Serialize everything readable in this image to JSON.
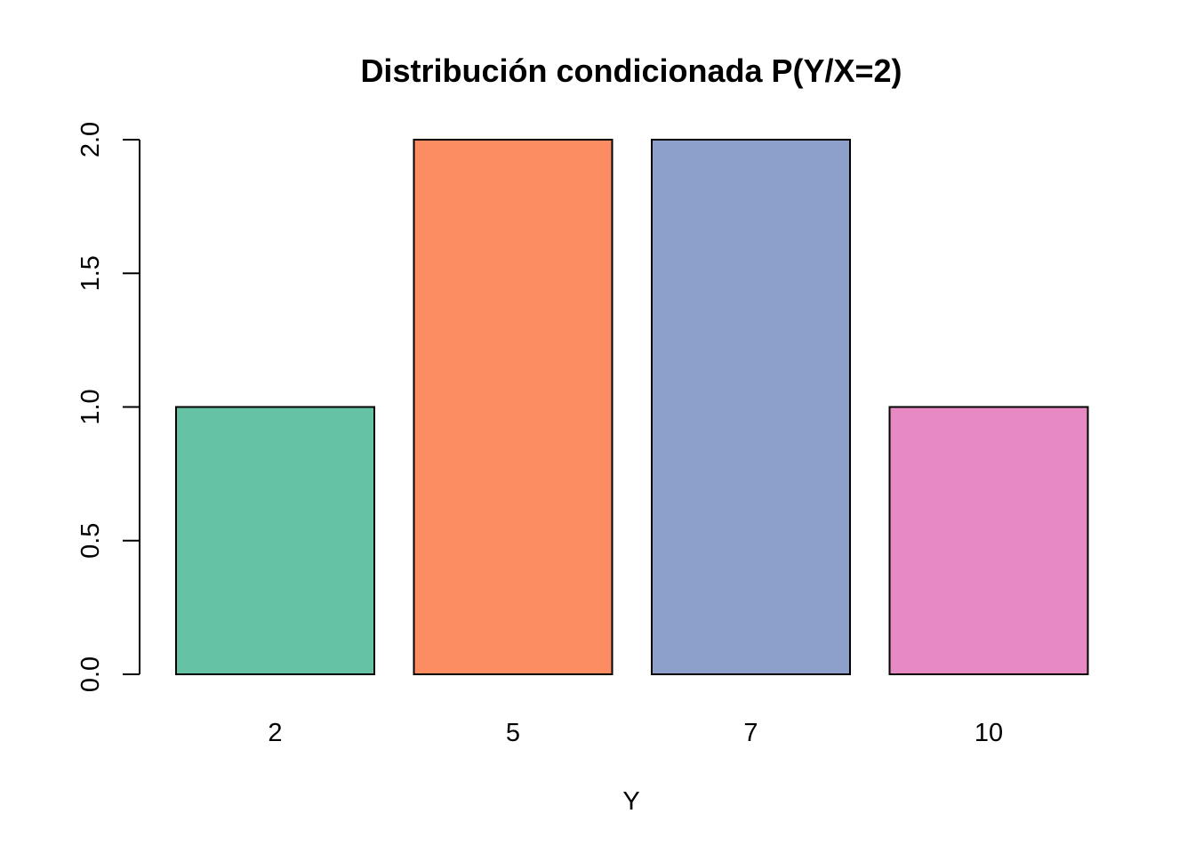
{
  "chart_data": {
    "type": "bar",
    "title": "Distribución condicionada P(Y/X=2)",
    "xlabel": "Y",
    "ylabel": "",
    "categories": [
      "2",
      "5",
      "7",
      "10"
    ],
    "values": [
      1,
      2,
      2,
      1
    ],
    "colors": [
      "#66c2a5",
      "#fc8d62",
      "#8da0cb",
      "#e78ac3"
    ],
    "ylim": [
      0,
      2
    ],
    "yticks": [
      "0.0",
      "0.5",
      "1.0",
      "1.5",
      "2.0"
    ],
    "grid": false,
    "legend": "none"
  }
}
